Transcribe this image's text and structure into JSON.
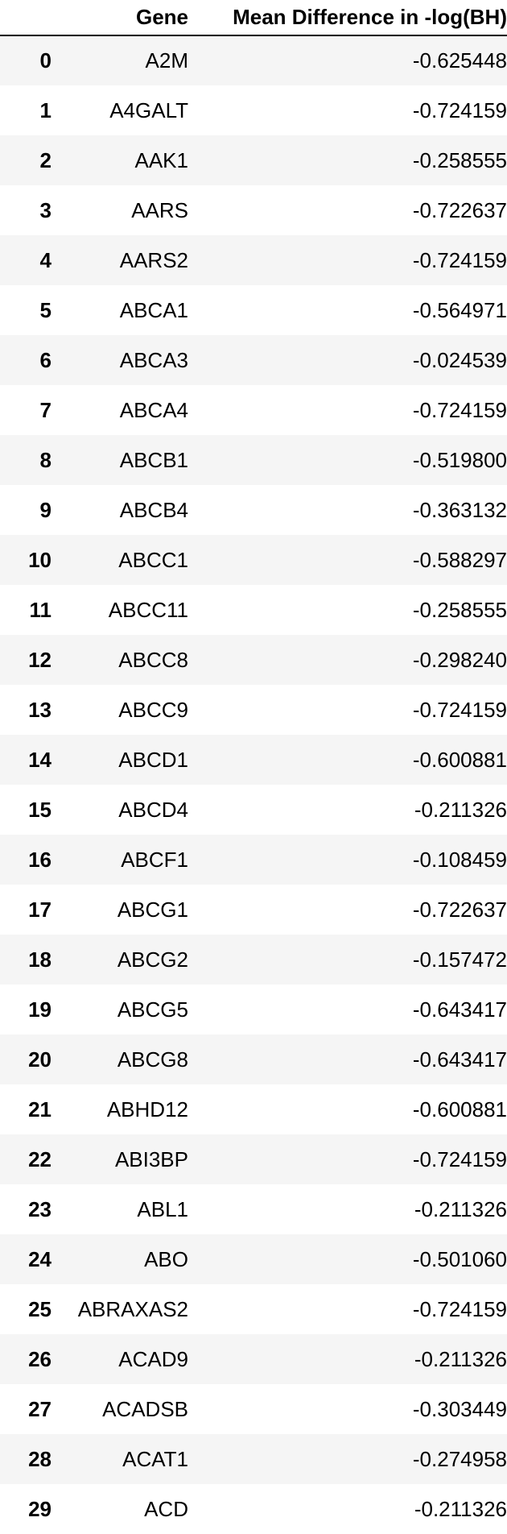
{
  "table": {
    "columns": [
      "",
      "Gene",
      "Mean Difference in -log(BH)"
    ],
    "rows": [
      {
        "index": "0",
        "gene": "A2M",
        "value": "-0.625448"
      },
      {
        "index": "1",
        "gene": "A4GALT",
        "value": "-0.724159"
      },
      {
        "index": "2",
        "gene": "AAK1",
        "value": "-0.258555"
      },
      {
        "index": "3",
        "gene": "AARS",
        "value": "-0.722637"
      },
      {
        "index": "4",
        "gene": "AARS2",
        "value": "-0.724159"
      },
      {
        "index": "5",
        "gene": "ABCA1",
        "value": "-0.564971"
      },
      {
        "index": "6",
        "gene": "ABCA3",
        "value": "-0.024539"
      },
      {
        "index": "7",
        "gene": "ABCA4",
        "value": "-0.724159"
      },
      {
        "index": "8",
        "gene": "ABCB1",
        "value": "-0.519800"
      },
      {
        "index": "9",
        "gene": "ABCB4",
        "value": "-0.363132"
      },
      {
        "index": "10",
        "gene": "ABCC1",
        "value": "-0.588297"
      },
      {
        "index": "11",
        "gene": "ABCC11",
        "value": "-0.258555"
      },
      {
        "index": "12",
        "gene": "ABCC8",
        "value": "-0.298240"
      },
      {
        "index": "13",
        "gene": "ABCC9",
        "value": "-0.724159"
      },
      {
        "index": "14",
        "gene": "ABCD1",
        "value": "-0.600881"
      },
      {
        "index": "15",
        "gene": "ABCD4",
        "value": "-0.211326"
      },
      {
        "index": "16",
        "gene": "ABCF1",
        "value": "-0.108459"
      },
      {
        "index": "17",
        "gene": "ABCG1",
        "value": "-0.722637"
      },
      {
        "index": "18",
        "gene": "ABCG2",
        "value": "-0.157472"
      },
      {
        "index": "19",
        "gene": "ABCG5",
        "value": "-0.643417"
      },
      {
        "index": "20",
        "gene": "ABCG8",
        "value": "-0.643417"
      },
      {
        "index": "21",
        "gene": "ABHD12",
        "value": "-0.600881"
      },
      {
        "index": "22",
        "gene": "ABI3BP",
        "value": "-0.724159"
      },
      {
        "index": "23",
        "gene": "ABL1",
        "value": "-0.211326"
      },
      {
        "index": "24",
        "gene": "ABO",
        "value": "-0.501060"
      },
      {
        "index": "25",
        "gene": "ABRAXAS2",
        "value": "-0.724159"
      },
      {
        "index": "26",
        "gene": "ACAD9",
        "value": "-0.211326"
      },
      {
        "index": "27",
        "gene": "ACADSB",
        "value": "-0.303449"
      },
      {
        "index": "28",
        "gene": "ACAT1",
        "value": "-0.274958"
      },
      {
        "index": "29",
        "gene": "ACD",
        "value": "-0.211326"
      }
    ]
  }
}
